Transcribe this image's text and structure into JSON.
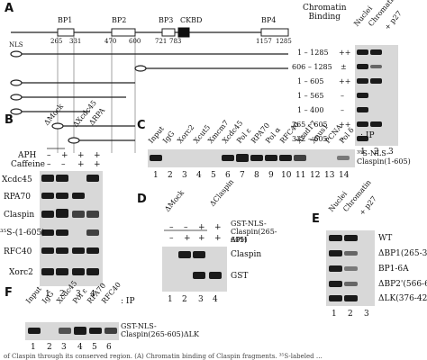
{
  "panel_labels": {
    "A": "A",
    "B": "B",
    "C": "C",
    "D": "D",
    "E": "E",
    "F": "F"
  },
  "panelA": {
    "domains": [
      "BP1",
      "BP2",
      "BP3",
      "CKBD",
      "BP4"
    ],
    "positions": [
      "265",
      "331",
      "470",
      "600",
      "721",
      "783",
      "1157",
      "1285"
    ],
    "nls": "NLS",
    "header": "Chromatin\nBinding",
    "constructs": [
      {
        "label": "1 – 1285",
        "binding": "++"
      },
      {
        "label": "606 – 1285",
        "binding": "±"
      },
      {
        "label": "1 – 605",
        "binding": "++"
      },
      {
        "label": "1 – 565",
        "binding": "–"
      },
      {
        "label": "1 – 400",
        "binding": "–"
      },
      {
        "label": "265 – 605",
        "binding": "++"
      },
      {
        "label": "332 – 605",
        "binding": "–"
      }
    ],
    "lanes_header": [
      "Nuclei",
      "Chromatin",
      "+ p27"
    ],
    "lane_numbers": [
      "1",
      "2",
      "3"
    ]
  },
  "panelB": {
    "top_labels": [
      "ΔMock",
      "ΔXcdc45",
      "ΔRPA"
    ],
    "rows": [
      "APH",
      "Caffeine"
    ],
    "aph_signs": [
      "–",
      "+",
      "+",
      "+"
    ],
    "caffeine_signs": [
      "–",
      "–",
      "+",
      "+"
    ],
    "blots": [
      "Xcdc45",
      "RPA70",
      "Claspin",
      "³⁵S-(1-605)",
      "RFC40",
      "Xorc2"
    ],
    "lane_numbers": [
      "1",
      "2",
      "3",
      "4"
    ]
  },
  "panelC": {
    "ip": ": IP",
    "lanes": [
      "Input",
      "IgG",
      "Xorc2",
      "Xcut5",
      "Xmcm7",
      "Xcdc45",
      "Pol ε",
      "RPA70",
      "Pol α",
      "RFC40",
      "Xrad17",
      "Xnus1",
      "PCNA",
      "Pol δ"
    ],
    "blot_label": "³⁵S-NLS-\nClaspin(1-605)",
    "lane_numbers": [
      "1",
      "2",
      "3",
      "4",
      "5",
      "6",
      "7",
      "8",
      "9",
      "10",
      "11",
      "12",
      "13",
      "14"
    ]
  },
  "panelD": {
    "top_labels": [
      "ΔMock",
      "ΔClaspin"
    ],
    "rows": [
      "GST-NLS-Claspin(265-605)",
      "APH"
    ],
    "gst_signs": [
      "–",
      "–",
      "+",
      "+"
    ],
    "aph_signs": [
      "–",
      "+",
      "+",
      "+"
    ],
    "blots": [
      "Claspin",
      "GST"
    ],
    "lane_numbers": [
      "1",
      "2",
      "3",
      "4"
    ]
  },
  "panelE": {
    "lanes_header": [
      "Nuclei",
      "Chromatin",
      "+ p27"
    ],
    "rows": [
      "WT",
      "ΔBP1(265-331)",
      "BP1-6A",
      "ΔBP2'(566-605)",
      "ΔLK(376-425)"
    ],
    "lane_numbers": [
      "1",
      "2",
      "3"
    ]
  },
  "panelF": {
    "lanes": [
      "Input",
      "IgG",
      "Xcdc45",
      "Pol ε",
      "RPA70",
      "RFC40"
    ],
    "ip": ": IP",
    "blot_label": "GST-NLS-\nClaspin(265-605)ΔLK",
    "lane_numbers": [
      "1",
      "2",
      "3",
      "4",
      "5",
      "6"
    ]
  },
  "caption_fragment": "of Claspin through its conserved region. (A) Chromatin binding of Claspin fragments. ³⁵S-labeled …"
}
